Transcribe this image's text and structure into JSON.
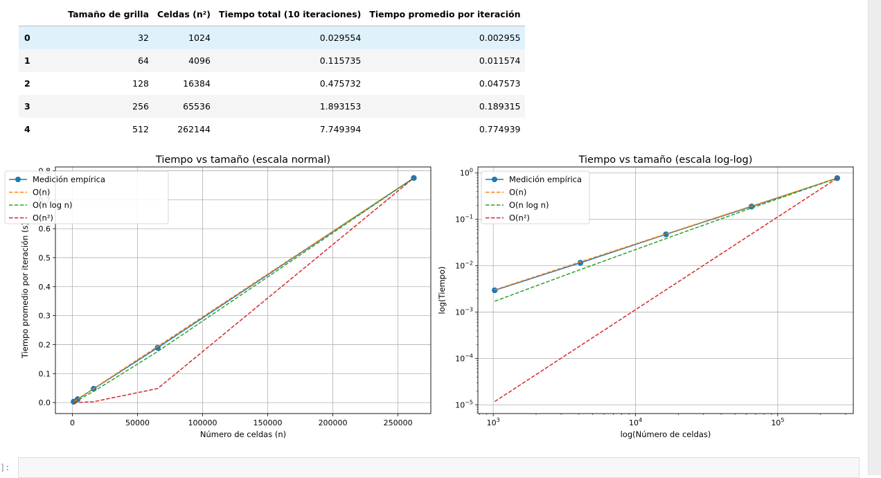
{
  "table": {
    "columns": [
      "",
      "Tamaño de grilla",
      "Celdas (n²)",
      "Tiempo total (10 iteraciones)",
      "Tiempo promedio por iteración"
    ],
    "rows": [
      [
        "0",
        "32",
        "1024",
        "0.029554",
        "0.002955"
      ],
      [
        "1",
        "64",
        "4096",
        "0.115735",
        "0.011574"
      ],
      [
        "2",
        "128",
        "16384",
        "0.475732",
        "0.047573"
      ],
      [
        "3",
        "256",
        "65536",
        "1.893153",
        "0.189315"
      ],
      [
        "4",
        "512",
        "262144",
        "7.749394",
        "0.774939"
      ]
    ]
  },
  "prompt_label": "]:",
  "colors": {
    "empirical": "#1f77b4",
    "on": "#ff7f0e",
    "onlogn": "#2ca02c",
    "on2": "#d62728",
    "grid": "#b0b0b0"
  },
  "chart_data": [
    {
      "type": "line",
      "title": "Tiempo vs tamaño (escala normal)",
      "xlabel": "Número de celdas (n)",
      "ylabel": "Tiempo promedio por iteración (s)",
      "xscale": "linear",
      "yscale": "linear",
      "xlim": [
        -13000,
        275200
      ],
      "ylim": [
        -0.038,
        0.813
      ],
      "xticks": [
        0,
        50000,
        100000,
        150000,
        200000,
        250000
      ],
      "xtick_labels": [
        "0",
        "50000",
        "100000",
        "150000",
        "200000",
        "250000"
      ],
      "yticks": [
        0.0,
        0.1,
        0.2,
        0.3,
        0.4,
        0.5,
        0.6,
        0.7,
        0.8
      ],
      "ytick_labels": [
        "0.0",
        "0.1",
        "0.2",
        "0.3",
        "0.4",
        "0.5",
        "0.6",
        "0.7",
        "0.8"
      ],
      "grid": true,
      "legend_position": "top-left",
      "x": [
        1024,
        4096,
        16384,
        65536,
        262144
      ],
      "series": [
        {
          "name": "Medición empírica",
          "style": "solid-marker",
          "color": "#1f77b4",
          "values": [
            0.002955,
            0.011574,
            0.047573,
            0.189315,
            0.774939
          ]
        },
        {
          "name": "O(n)",
          "style": "dashed",
          "color": "#ff7f0e",
          "values": [
            0.003027,
            0.012108,
            0.048434,
            0.193735,
            0.774939
          ]
        },
        {
          "name": "O(n log n)",
          "style": "dashed",
          "color": "#2ca02c",
          "values": [
            0.001722,
            0.008266,
            0.038576,
            0.17635,
            0.774939
          ]
        },
        {
          "name": "O(n²)",
          "style": "dashed",
          "color": "#d62728",
          "values": [
            1.18e-05,
            0.000189,
            0.003027,
            0.048434,
            0.774939
          ]
        }
      ]
    },
    {
      "type": "line",
      "title": "Tiempo vs tamaño (escala log-log)",
      "xlabel": "log(Número de celdas)",
      "ylabel": "log(Tiempo)",
      "xscale": "log",
      "yscale": "log",
      "xlim": [
        780,
        340000
      ],
      "ylim": [
        6.5e-06,
        1.35
      ],
      "xticks": [
        1000,
        10000,
        100000
      ],
      "xtick_labels": [
        [
          "10",
          "3"
        ],
        [
          "10",
          "4"
        ],
        [
          "10",
          "5"
        ]
      ],
      "yticks": [
        1e-05,
        0.0001,
        0.001,
        0.01,
        0.1,
        1
      ],
      "ytick_labels": [
        [
          "10",
          "−5"
        ],
        [
          "10",
          "−4"
        ],
        [
          "10",
          "−3"
        ],
        [
          "10",
          "−2"
        ],
        [
          "10",
          "−1"
        ],
        [
          "10",
          "0"
        ]
      ],
      "grid": true,
      "legend_position": "top-left",
      "x": [
        1024,
        4096,
        16384,
        65536,
        262144
      ],
      "series": [
        {
          "name": "Medición empírica",
          "style": "solid-marker",
          "color": "#1f77b4",
          "values": [
            0.002955,
            0.011574,
            0.047573,
            0.189315,
            0.774939
          ]
        },
        {
          "name": "O(n)",
          "style": "dashed",
          "color": "#ff7f0e",
          "values": [
            0.003027,
            0.012108,
            0.048434,
            0.193735,
            0.774939
          ]
        },
        {
          "name": "O(n log n)",
          "style": "dashed",
          "color": "#2ca02c",
          "values": [
            0.001722,
            0.008266,
            0.038576,
            0.17635,
            0.774939
          ]
        },
        {
          "name": "O(n²)",
          "style": "dashed",
          "color": "#d62728",
          "values": [
            1.18e-05,
            0.000189,
            0.003027,
            0.048434,
            0.774939
          ]
        }
      ]
    }
  ]
}
